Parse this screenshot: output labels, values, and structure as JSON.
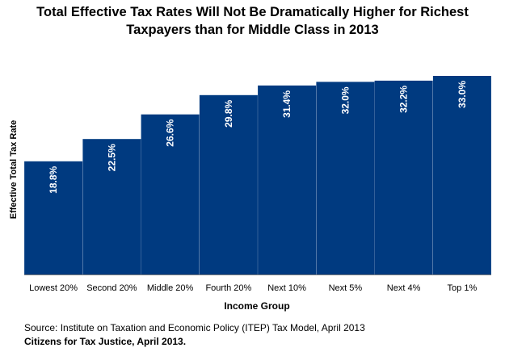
{
  "chart_data": {
    "type": "bar",
    "title_line1": "Total Effective Tax Rates Will Not Be Dramatically Higher for Richest",
    "title_line2": "Taxpayers than for Middle Class in 2013",
    "xlabel": "Income Group",
    "ylabel": "Effective Total Tax Rate",
    "categories": [
      "Lowest 20%",
      "Second 20%",
      "Middle 20%",
      "Fourth 20%",
      "Next 10%",
      "Next 5%",
      "Next 4%",
      "Top 1%"
    ],
    "values": [
      18.8,
      22.5,
      26.6,
      29.8,
      31.4,
      32.0,
      32.2,
      33.0
    ],
    "data_labels": [
      "18.8%",
      "22.5%",
      "26.6%",
      "29.8%",
      "31.4%",
      "32.0%",
      "32.2%",
      "33.0%"
    ],
    "ylim": [
      0,
      33.8
    ],
    "grid": false,
    "bar_color": "#003a80",
    "label_color": "#ffffff"
  },
  "source": "Source: Institute on Taxation and Economic Policy (ITEP) Tax Model, April 2013",
  "credit": "Citizens for Tax Justice, April 2013."
}
